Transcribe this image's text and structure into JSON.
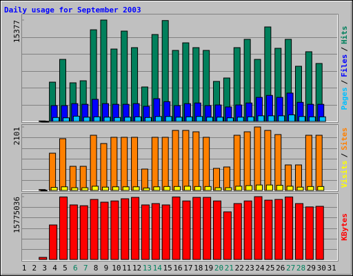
{
  "chart_data": {
    "type": "bar",
    "title": "Daily usage for September 2003",
    "title_color": "#0000FF",
    "legend_separator": "/",
    "categories": [
      "1",
      "2",
      "3",
      "4",
      "5",
      "6",
      "7",
      "8",
      "9",
      "10",
      "11",
      "12",
      "13",
      "14",
      "15",
      "16",
      "17",
      "18",
      "19",
      "20",
      "21",
      "22",
      "23",
      "24",
      "25",
      "26",
      "27",
      "28",
      "29",
      "30",
      "31"
    ],
    "category_colors": [
      "#000000",
      "#000000",
      "#000000",
      "#000000",
      "#000000",
      "#00805C",
      "#00805C",
      "#000000",
      "#000000",
      "#000000",
      "#000000",
      "#000000",
      "#00805C",
      "#00805C",
      "#000000",
      "#000000",
      "#000000",
      "#000000",
      "#000000",
      "#00805C",
      "#00805C",
      "#000000",
      "#000000",
      "#000000",
      "#000000",
      "#000000",
      "#00805C",
      "#00805C",
      "#000000",
      "#000000",
      "#000000"
    ],
    "panels": [
      {
        "ylim": [
          0,
          15377
        ],
        "yticks": [
          15377
        ],
        "series": [
          {
            "name": "Hits",
            "color": "#00805C",
            "values": [
              null,
              null,
              80,
              5960,
              9410,
              5860,
              6170,
              13900,
              15377,
              10980,
              13700,
              11190,
              5230,
              13180,
              15300,
              10770,
              11920,
              11190,
              10770,
              6070,
              6590,
              11190,
              12450,
              9410,
              14330,
              11090,
              12450,
              8370,
              10570,
              8790,
              null
            ]
          },
          {
            "name": "Files",
            "color": "#0000FF",
            "values": [
              null,
              null,
              30,
              2400,
              2400,
              2700,
              2600,
              3350,
              2700,
              2600,
              2600,
              2700,
              2300,
              3450,
              3000,
              2400,
              2700,
              2800,
              2400,
              2500,
              2200,
              2500,
              2800,
              3650,
              3950,
              3650,
              4300,
              2900,
              2600,
              2600,
              null
            ]
          },
          {
            "name": "Pages",
            "color": "#00C0FF",
            "values": [
              null,
              null,
              20,
              600,
              550,
              800,
              650,
              700,
              650,
              600,
              650,
              700,
              600,
              750,
              750,
              650,
              700,
              750,
              650,
              650,
              550,
              650,
              700,
              850,
              850,
              850,
              1000,
              750,
              700,
              700,
              null
            ]
          }
        ]
      },
      {
        "ylim": [
          0,
          2101
        ],
        "yticks": [
          2101
        ],
        "series": [
          {
            "name": "Sites",
            "color": "#FF8000",
            "values": [
              null,
              null,
              30,
              1233,
              1713,
              799,
              799,
              1827,
              1553,
              1759,
              1759,
              1759,
              708,
              1759,
              1759,
              1987,
              1987,
              1941,
              1759,
              731,
              777,
              1827,
              1941,
              2101,
              1987,
              1850,
              845,
              845,
              1827,
              1827,
              null
            ]
          },
          {
            "name": "Visits",
            "color": "#FFFF00",
            "values": [
              null,
              null,
              10,
              100,
              120,
              90,
              90,
              140,
              110,
              120,
              120,
              120,
              80,
              120,
              130,
              130,
              140,
              130,
              130,
              90,
              90,
              140,
              160,
              180,
              180,
              170,
              140,
              110,
              130,
              130,
              null
            ]
          }
        ]
      },
      {
        "ylim": [
          0,
          15775036
        ],
        "yticks": [
          15775036
        ],
        "series": [
          {
            "name": "KBytes",
            "color": "#FF0000",
            "values": [
              null,
              null,
              520000,
              8667600,
              15700000,
              13700000,
              13500000,
              15080000,
              14390000,
              14700000,
              15250000,
              15600000,
              13700000,
              14040000,
              13700000,
              15700000,
              14700000,
              15600000,
              15600000,
              14700000,
              11960000,
              14040000,
              14700000,
              15775036,
              14900000,
              15080000,
              15700000,
              14040000,
              13200000,
              13350000,
              null
            ]
          }
        ]
      }
    ]
  }
}
